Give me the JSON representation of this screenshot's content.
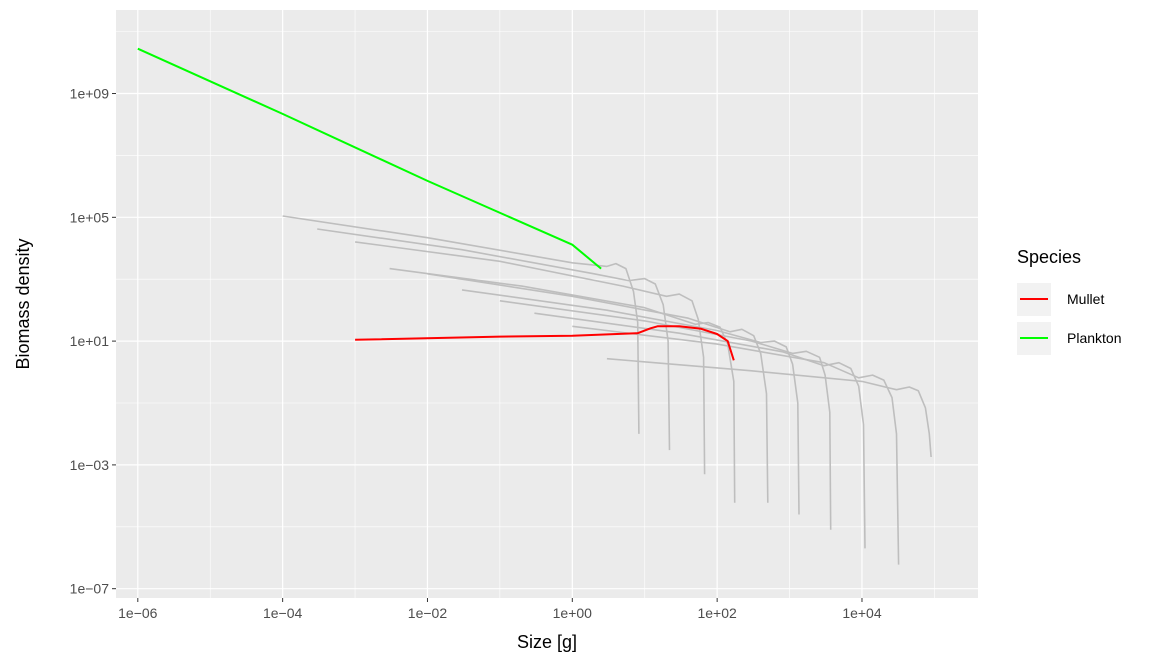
{
  "chart_data": {
    "type": "line",
    "xlabel": "Size [g]",
    "ylabel": "Biomass density",
    "x_scale": "log10",
    "y_scale": "log10",
    "xlim": [
      5e-07,
      400000.0
    ],
    "ylim": [
      5e-08,
      500000000000.0
    ],
    "x_ticks": [
      "1e−06",
      "1e−04",
      "1e−02",
      "1e+00",
      "1e+02",
      "1e+04"
    ],
    "y_ticks": [
      "1e−07",
      "1e−03",
      "1e+01",
      "1e+05",
      "1e+09"
    ],
    "grid": true,
    "legend": {
      "title": "Species",
      "position": "right",
      "entries": [
        {
          "label": "Mullet",
          "color": "#ff0000"
        },
        {
          "label": "Plankton",
          "color": "#00ff00"
        }
      ]
    },
    "colors": {
      "panel": "#ebebeb",
      "grid": "#ffffff",
      "background_species": "#bebebe"
    },
    "series": [
      {
        "name": "Plankton",
        "color": "#00ff00",
        "points": [
          [
            1e-06,
            28000000000.0
          ],
          [
            0.0001,
            220000000.0
          ],
          [
            0.01,
            1500000.0
          ],
          [
            1,
            13000.0
          ],
          [
            2.5,
            2200.0
          ]
        ]
      },
      {
        "name": "Mullet",
        "color": "#ff0000",
        "points": [
          [
            0.001,
            11
          ],
          [
            0.1,
            14
          ],
          [
            1,
            15
          ],
          [
            8,
            18
          ],
          [
            12,
            26
          ],
          [
            15,
            30
          ],
          [
            30,
            30
          ],
          [
            60,
            25
          ],
          [
            100,
            17
          ],
          [
            140,
            10
          ],
          [
            170,
            2.4
          ]
        ]
      },
      {
        "color": "#bebebe",
        "points": [
          [
            0.0001,
            110000.0
          ],
          [
            0.01,
            22000.0
          ],
          [
            1,
            3400.0
          ],
          [
            3,
            2600.0
          ],
          [
            4,
            3200.0
          ],
          [
            5.5,
            2200.0
          ],
          [
            7,
            400
          ],
          [
            8,
            40
          ],
          [
            8.3,
            0.01
          ]
        ]
      },
      {
        "color": "#bebebe",
        "points": [
          [
            0.0003,
            42000.0
          ],
          [
            0.03,
            9000.0
          ],
          [
            2,
            1500.0
          ],
          [
            6,
            900
          ],
          [
            10,
            1050.0
          ],
          [
            14,
            700
          ],
          [
            18,
            150
          ],
          [
            21,
            10
          ],
          [
            22,
            0.003
          ]
        ]
      },
      {
        "color": "#bebebe",
        "points": [
          [
            0.001,
            16000.0
          ],
          [
            0.1,
            3800.0
          ],
          [
            5,
            600
          ],
          [
            20,
            280
          ],
          [
            30,
            330
          ],
          [
            45,
            200
          ],
          [
            55,
            50
          ],
          [
            65,
            3
          ],
          [
            67,
            0.0005
          ]
        ]
      },
      {
        "color": "#bebebe",
        "points": [
          [
            0.003,
            2200.0
          ],
          [
            0.2,
            600
          ],
          [
            10,
            120
          ],
          [
            50,
            35
          ],
          [
            75,
            40
          ],
          [
            110,
            28
          ],
          [
            140,
            8
          ],
          [
            170,
            0.5
          ],
          [
            175,
            6e-05
          ]
        ]
      },
      {
        "color": "#bebebe",
        "points": [
          [
            0.01,
            1500.0
          ],
          [
            1,
            280
          ],
          [
            40,
            55
          ],
          [
            150,
            20
          ],
          [
            220,
            24
          ],
          [
            320,
            15
          ],
          [
            400,
            4
          ],
          [
            480,
            0.2
          ],
          [
            500,
            6e-05
          ]
        ]
      },
      {
        "color": "#bebebe",
        "points": [
          [
            0.03,
            450
          ],
          [
            3,
            100
          ],
          [
            100,
            22
          ],
          [
            400,
            9
          ],
          [
            620,
            10
          ],
          [
            900,
            6.5
          ],
          [
            1100,
            1.8
          ],
          [
            1300,
            0.1
          ],
          [
            1350,
            2.5e-05
          ]
        ]
      },
      {
        "color": "#bebebe",
        "points": [
          [
            0.1,
            200
          ],
          [
            10,
            45
          ],
          [
            300,
            10
          ],
          [
            1100,
            4
          ],
          [
            1700,
            4.7
          ],
          [
            2600,
            3
          ],
          [
            3100,
            0.8
          ],
          [
            3600,
            0.05
          ],
          [
            3700,
            8e-06
          ]
        ]
      },
      {
        "color": "#bebebe",
        "points": [
          [
            0.3,
            80
          ],
          [
            30,
            18
          ],
          [
            800,
            4.5
          ],
          [
            3000,
            1.6
          ],
          [
            4800,
            2
          ],
          [
            7000,
            1.3
          ],
          [
            9000,
            0.35
          ],
          [
            10500,
            0.02
          ],
          [
            11000,
            2e-06
          ]
        ]
      },
      {
        "color": "#bebebe",
        "points": [
          [
            1,
            30
          ],
          [
            100,
            8
          ],
          [
            3000,
            2
          ],
          [
            9000,
            0.65
          ],
          [
            14000,
            0.8
          ],
          [
            20000,
            0.55
          ],
          [
            26000,
            0.15
          ],
          [
            30000,
            0.01
          ],
          [
            32000,
            6e-07
          ]
        ]
      },
      {
        "color": "#bebebe",
        "points": [
          [
            3,
            2.7
          ],
          [
            300,
            1.1
          ],
          [
            10000,
            0.5
          ],
          [
            30000,
            0.27
          ],
          [
            45000,
            0.33
          ],
          [
            60000,
            0.25
          ],
          [
            75000,
            0.07
          ],
          [
            85000,
            0.01
          ],
          [
            90000,
            0.0018
          ]
        ]
      }
    ]
  }
}
